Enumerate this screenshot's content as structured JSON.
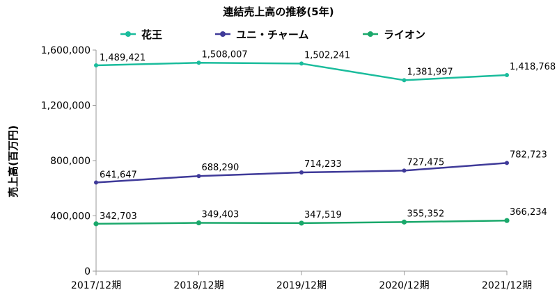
{
  "chart_data": {
    "type": "line",
    "title": "連結売上高の推移(5年)",
    "ylabel": "売上高(百万円)",
    "xlabel": "",
    "categories": [
      "2017/12期",
      "2018/12期",
      "2019/12期",
      "2020/12期",
      "2021/12期"
    ],
    "ylim": [
      0,
      1600000
    ],
    "yticks": [
      0,
      400000,
      800000,
      1200000,
      1600000
    ],
    "ytick_labels": [
      "0",
      "400,000",
      "800,000",
      "1,200,000",
      "1,600,000"
    ],
    "grid": false,
    "legend_position": "top",
    "series": [
      {
        "name": "花王",
        "color": "#1abc9c",
        "values": [
          1489421,
          1508007,
          1502241,
          1381997,
          1418768
        ],
        "labels": [
          "1,489,421",
          "1,508,007",
          "1,502,241",
          "1,381,997",
          "1,418,768"
        ]
      },
      {
        "name": "ユニ・チャーム",
        "color": "#3f3a99",
        "values": [
          641647,
          688290,
          714233,
          727475,
          782723
        ],
        "labels": [
          "641,647",
          "688,290",
          "714,233",
          "727,475",
          "782,723"
        ]
      },
      {
        "name": "ライオン",
        "color": "#1aa86b",
        "values": [
          342703,
          349403,
          347519,
          355352,
          366234
        ],
        "labels": [
          "342,703",
          "349,403",
          "347,519",
          "355,352",
          "366,234"
        ]
      }
    ]
  }
}
